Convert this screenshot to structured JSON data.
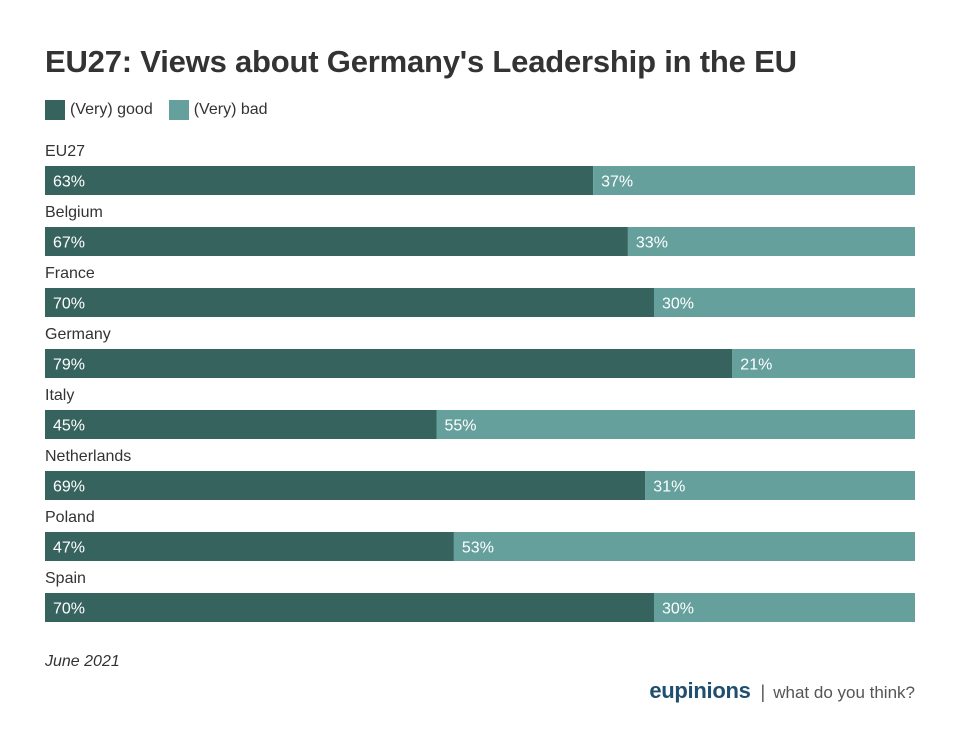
{
  "chart_data": {
    "type": "bar",
    "orientation": "horizontal",
    "stacked": true,
    "title": "EU27: Views about Germany's Leadership in the EU",
    "categories": [
      "EU27",
      "Belgium",
      "France",
      "Germany",
      "Italy",
      "Netherlands",
      "Poland",
      "Spain"
    ],
    "series": [
      {
        "name": "(Very) good",
        "values": [
          63,
          67,
          70,
          79,
          45,
          69,
          47,
          70
        ],
        "color": "#37635f"
      },
      {
        "name": "(Very) bad",
        "values": [
          37,
          33,
          30,
          21,
          55,
          31,
          53,
          30
        ],
        "color": "#66a09d"
      }
    ],
    "value_suffix": "%",
    "xlim": [
      0,
      100
    ],
    "xlabel": "",
    "ylabel": "",
    "legend": "top-left",
    "grid": false
  },
  "footnote": "June 2021",
  "brand": {
    "logo": "eupinions",
    "separator": "|",
    "tagline": "what do you think?"
  }
}
